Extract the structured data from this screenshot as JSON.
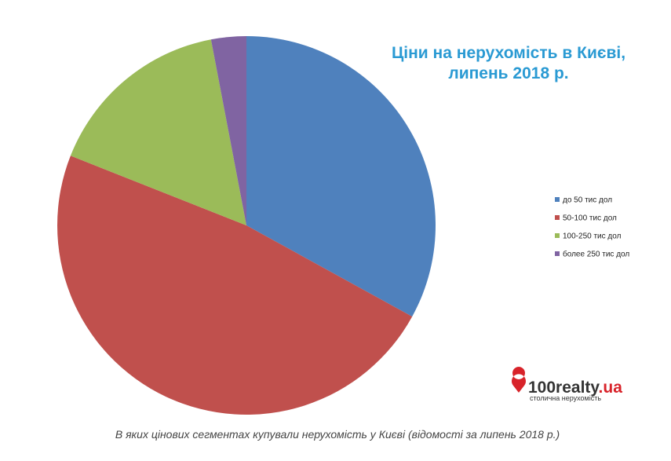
{
  "chart_data": {
    "type": "pie",
    "title_lines": [
      "Ціни на нерухомість в Києві,",
      "липень 2018 р."
    ],
    "categories": [
      "до 50 тис дол",
      "50-100 тис дол",
      "100-250 тис дол",
      "более 250 тис дол"
    ],
    "values": [
      33,
      48,
      16,
      3
    ],
    "colors": [
      "#4f81bd",
      "#c0504d",
      "#9bbb59",
      "#8064a2"
    ],
    "legend": "right"
  },
  "logo": {
    "name": "100realty",
    "tld": ".ua",
    "tagline": "столична нерухомість"
  },
  "caption": "В яких цінових сегментах купували нерухомість у Києві (відомості за липень 2018 р.)"
}
